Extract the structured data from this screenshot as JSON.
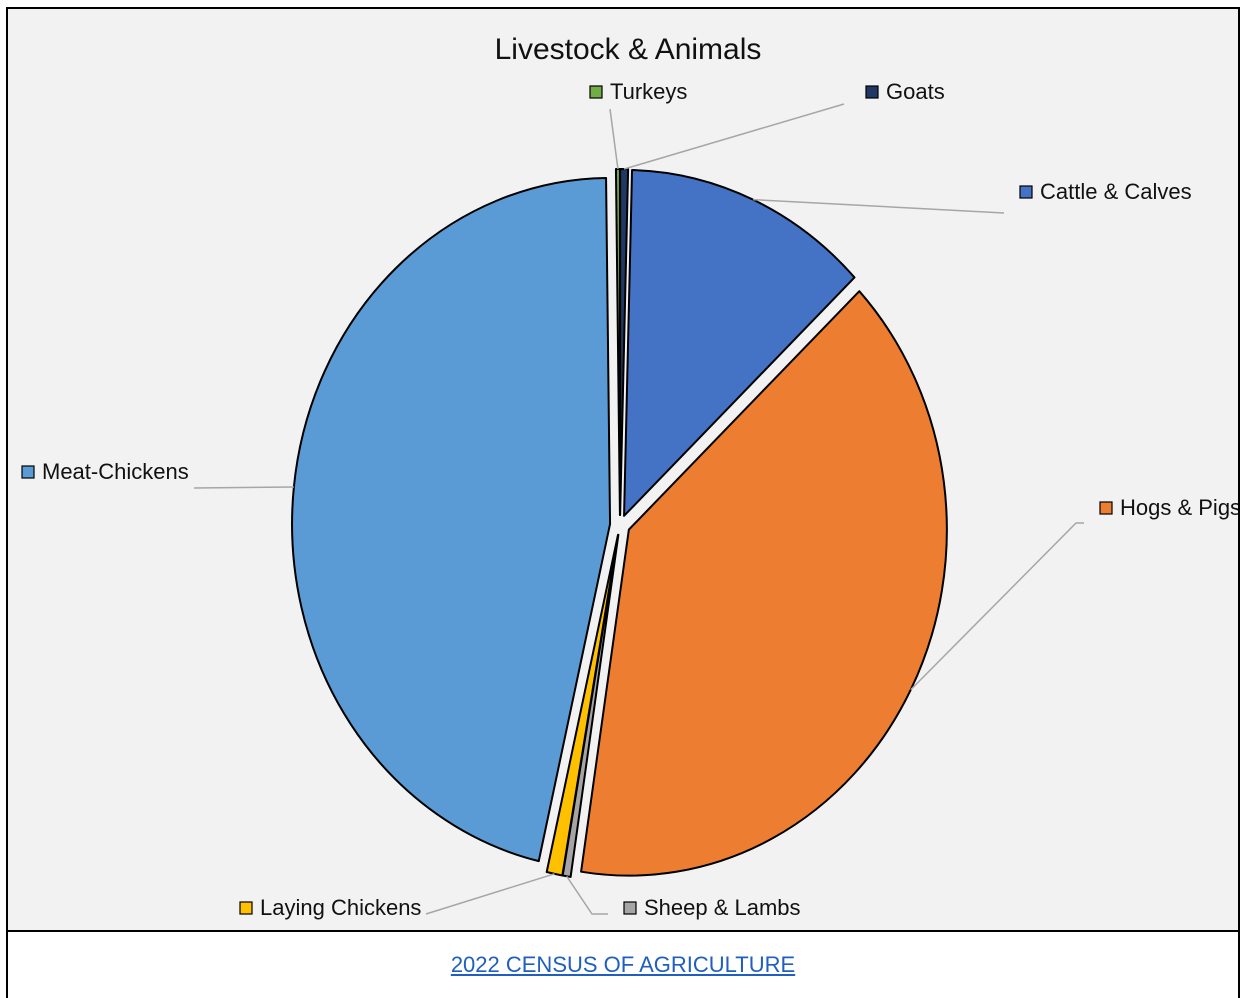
{
  "chart_data": {
    "type": "pie",
    "title": "Livestock & Animals",
    "slices": [
      {
        "label": "Goats",
        "value": 0.4,
        "color": "#203864"
      },
      {
        "label": "Cattle & Calves",
        "value": 12.5,
        "color": "#4472c4"
      },
      {
        "label": "Hogs & Pigs",
        "value": 39.5,
        "color": "#ed7d31"
      },
      {
        "label": "Sheep & Lambs",
        "value": 0.4,
        "color": "#a5a5a5"
      },
      {
        "label": "Laying Chickens",
        "value": 0.8,
        "color": "#ffc000"
      },
      {
        "label": "Meat-Chickens",
        "value": 46.2,
        "color": "#5b9bd5"
      },
      {
        "label": "Turkeys",
        "value": 0.2,
        "color": "#70ad47"
      }
    ],
    "legend": "data labels with leader lines"
  },
  "footer": {
    "link_text": "2022 CENSUS OF AGRICULTURE"
  }
}
